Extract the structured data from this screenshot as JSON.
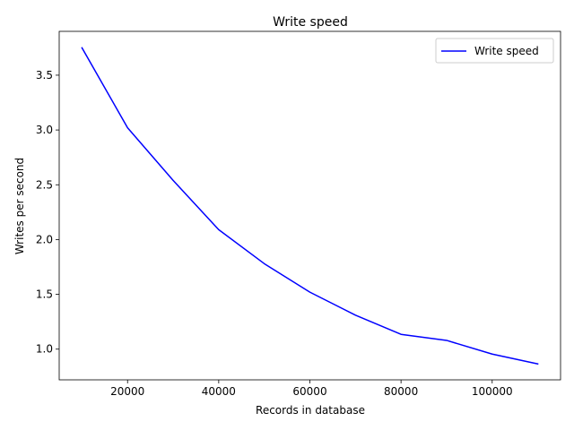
{
  "chart_data": {
    "type": "line",
    "title": "Write speed",
    "xlabel": "Records in database",
    "ylabel": "Writes per second",
    "xlim": [
      5000,
      115000
    ],
    "ylim": [
      0.72,
      3.9
    ],
    "xticks": [
      20000,
      40000,
      60000,
      80000,
      100000
    ],
    "yticks": [
      1.0,
      1.5,
      2.0,
      2.5,
      3.0,
      3.5
    ],
    "ytick_labels": [
      "1.0",
      "1.5",
      "2.0",
      "2.5",
      "3.0",
      "3.5"
    ],
    "grid": false,
    "legend": {
      "position": "top-right"
    },
    "series": [
      {
        "name": "Write speed",
        "color": "#0000ff",
        "x": [
          10000,
          20000,
          30000,
          40000,
          50000,
          60000,
          70000,
          80000,
          90000,
          100000,
          110000
        ],
        "y": [
          3.75,
          3.02,
          2.54,
          2.09,
          1.78,
          1.52,
          1.31,
          1.135,
          1.08,
          0.955,
          0.865
        ]
      }
    ]
  }
}
